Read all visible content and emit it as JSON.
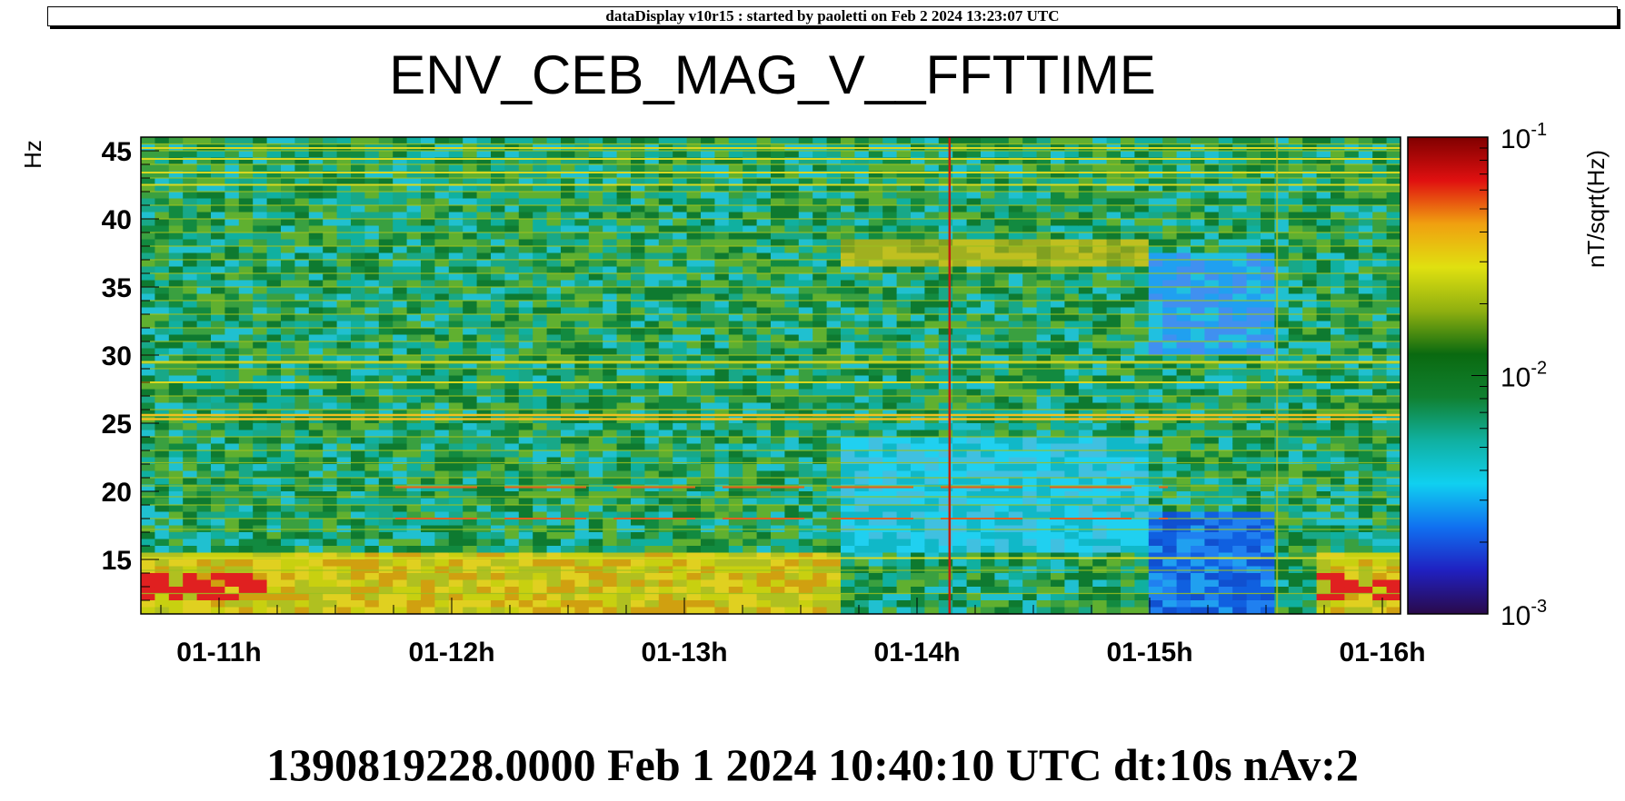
{
  "header": "dataDisplay v10r15 : started by paoletti on Feb  2 2024 13:23:07 UTC",
  "footer": "1390819228.0000 Feb 1 2024 10:40:10 UTC dt:10s nAv:2",
  "chart_data": {
    "type": "heatmap",
    "title": "ENV_CEB_MAG_V__FFTTIME",
    "ylabel": "Hz",
    "zlabel": "nT/sqrt(Hz)",
    "zscale": "log",
    "zlim": [
      0.001,
      0.1
    ],
    "ylim": [
      11,
      46
    ],
    "y_ticks": [
      15,
      20,
      25,
      30,
      35,
      40,
      45
    ],
    "x_ticks": [
      "01-11h",
      "01-12h",
      "01-13h",
      "01-14h",
      "01-15h",
      "01-16h"
    ],
    "colorbar_ticks": [
      {
        "base": "10",
        "exp": "-1"
      },
      {
        "base": "10",
        "exp": "-2"
      },
      {
        "base": "10",
        "exp": "-3"
      }
    ],
    "colormap": [
      "#2a0a4a",
      "#2020c0",
      "#1070f0",
      "#10d0f0",
      "#10b0a0",
      "#108030",
      "#0a6a10",
      "#90b010",
      "#e0e010",
      "#f0a010",
      "#e01010",
      "#800000"
    ],
    "strong_lines_hz": [
      25.3,
      25.6
    ],
    "vertical_glitch_hour": "01-14h",
    "grid": false
  }
}
